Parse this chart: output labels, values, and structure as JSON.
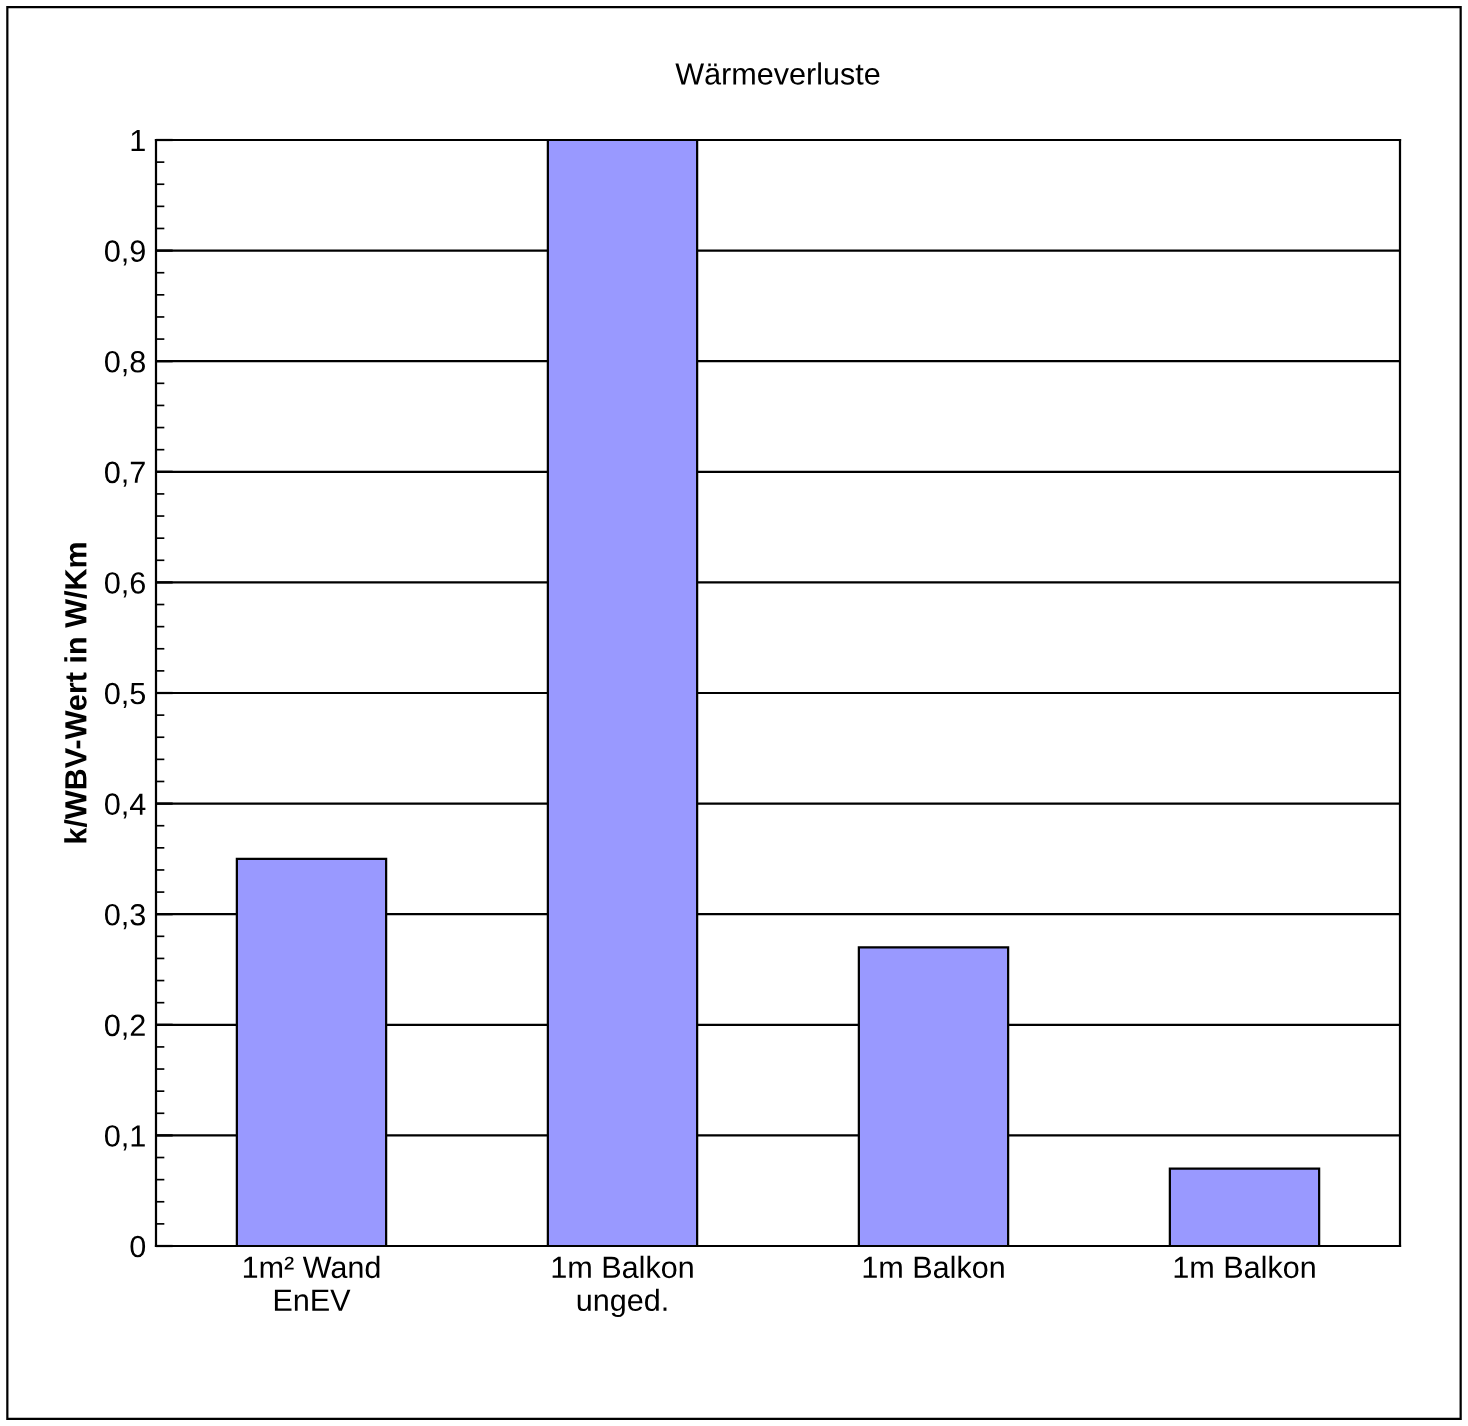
{
  "chart_data": {
    "type": "bar",
    "title": "Wärmeverluste",
    "ylabel": "k/WBV-Wert in W/Km",
    "categories": [
      "1m² Wand\nEnEV",
      "1m Balkon\nunged.",
      "1m Balkon",
      "1m Balkon"
    ],
    "values": [
      0.35,
      1.0,
      0.27,
      0.07
    ],
    "color": "#9999ff",
    "ylim": [
      0,
      1
    ],
    "yticks": [
      0,
      {
        "value": 0.1,
        "label": "0,1"
      },
      {
        "value": 0.2,
        "label": "0,2"
      },
      {
        "value": 0.3,
        "label": "0,3"
      },
      {
        "value": 0.4,
        "label": "0,4"
      },
      {
        "value": 0.5,
        "label": "0,5"
      },
      {
        "value": 0.6,
        "label": "0,6"
      },
      {
        "value": 0.7,
        "label": "0,7"
      },
      {
        "value": 0.8,
        "label": "0,8"
      },
      {
        "value": 0.9,
        "label": "0,9"
      },
      1
    ],
    "grid": "y"
  }
}
